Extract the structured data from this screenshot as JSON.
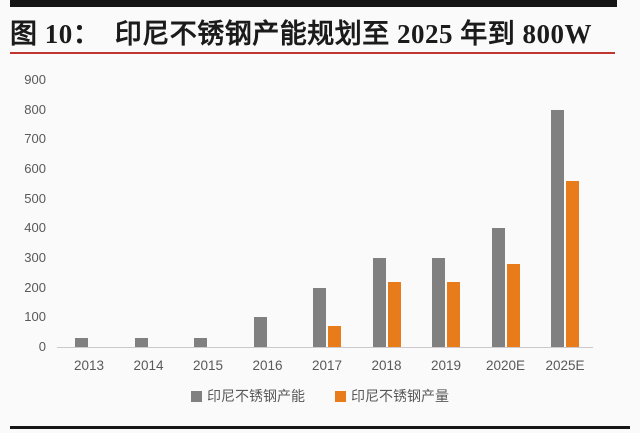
{
  "figure": {
    "title": "图 10：  印尼不锈钢产能规划至 2025 年到 800W"
  },
  "chart_data": {
    "type": "bar",
    "title": "印尼不锈钢产能规划至 2025 年到 800W",
    "categories": [
      "2013",
      "2014",
      "2015",
      "2016",
      "2017",
      "2018",
      "2019",
      "2020E",
      "2025E"
    ],
    "series": [
      {
        "name": "印尼不锈钢产能",
        "color": "#808080",
        "values": [
          30,
          30,
          30,
          100,
          200,
          300,
          300,
          400,
          800
        ]
      },
      {
        "name": "印尼不锈钢产量",
        "color": "#e87c1a",
        "values": [
          0,
          0,
          0,
          0,
          70,
          220,
          220,
          280,
          560
        ]
      }
    ],
    "xlabel": "",
    "ylabel": "",
    "ylim": [
      0,
      900
    ],
    "yticks": [
      0,
      100,
      200,
      300,
      400,
      500,
      600,
      700,
      800,
      900
    ],
    "grid": false,
    "legend_position": "bottom"
  },
  "colors": {
    "bar_capacity": "#808080",
    "bar_production": "#e87c1a",
    "title_text": "#1b1b1b",
    "accent_rule_red": "#c13531",
    "frame_black": "#161616",
    "axis_text": "#595959",
    "axis_line": "#ccc8cb",
    "background": "#fbfafb"
  }
}
